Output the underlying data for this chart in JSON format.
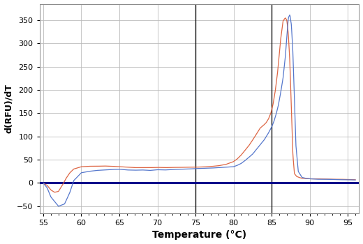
{
  "xlabel": "Temperature (°C)",
  "ylabel": "d(RFU)/dT",
  "xlim": [
    54.5,
    96.5
  ],
  "ylim": [
    -65,
    385
  ],
  "xticks": [
    55,
    60,
    65,
    70,
    75,
    80,
    85,
    90,
    95
  ],
  "yticks": [
    -50,
    0,
    50,
    100,
    150,
    200,
    250,
    300,
    350
  ],
  "vlines": [
    75.0,
    85.0
  ],
  "vline_color": "#111111",
  "hline_y": 0,
  "hline_color": "#00008B",
  "blue_color": "#5577CC",
  "red_color": "#DD6644",
  "background_color": "#FFFFFF",
  "grid_color": "#BBBBBB"
}
